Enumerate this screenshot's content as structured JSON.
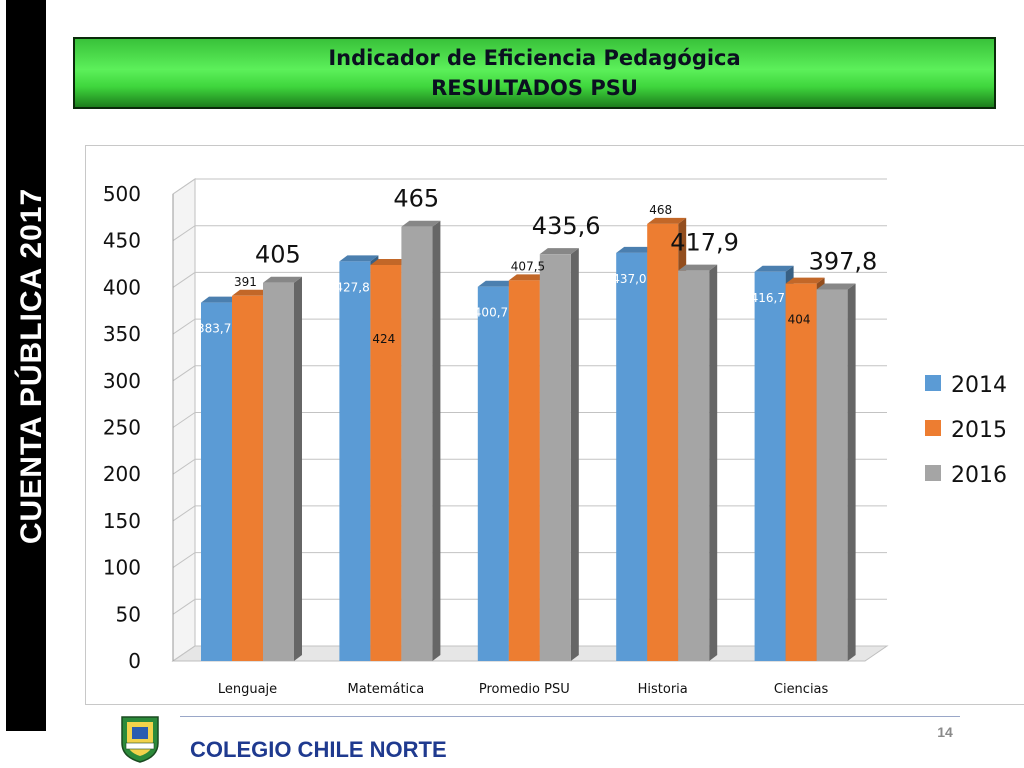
{
  "side_label": "CUENTA  PÚBLICA  2017",
  "header": {
    "title_line1": "Indicador de Eficiencia Pedagógica",
    "title_line2": "RESULTADOS PSU"
  },
  "footer": {
    "school_name": "COLEGIO CHILE NORTE",
    "page_number": "14"
  },
  "chart_data": {
    "type": "bar",
    "title": "",
    "xlabel": "",
    "ylabel": "",
    "ylim": [
      0,
      500
    ],
    "yticks": [
      "0",
      "50",
      "100",
      "150",
      "200",
      "250",
      "300",
      "350",
      "400",
      "450",
      "500"
    ],
    "categories": [
      "Lenguaje",
      "Matemática",
      "Promedio PSU",
      "Historia",
      "Ciencias"
    ],
    "series": [
      {
        "name": "2014",
        "color": "#5b9bd5",
        "values": [
          383.7,
          427.8,
          400.7,
          437.0,
          416.7
        ],
        "labels": [
          "383,7",
          "427,8",
          "400,7",
          "437,0",
          "416,7"
        ]
      },
      {
        "name": "2015",
        "color": "#ed7d31",
        "values": [
          391,
          424,
          407.5,
          468,
          404
        ],
        "labels": [
          "391",
          "424",
          "407,5",
          "468",
          "404"
        ]
      },
      {
        "name": "2016",
        "color": "#a5a5a5",
        "values": [
          405,
          465,
          435.6,
          417.9,
          397.8
        ],
        "labels": [
          "405",
          "465",
          "435,6",
          "417,9",
          "397,8"
        ]
      }
    ],
    "grid": true,
    "legend_position": "right"
  }
}
